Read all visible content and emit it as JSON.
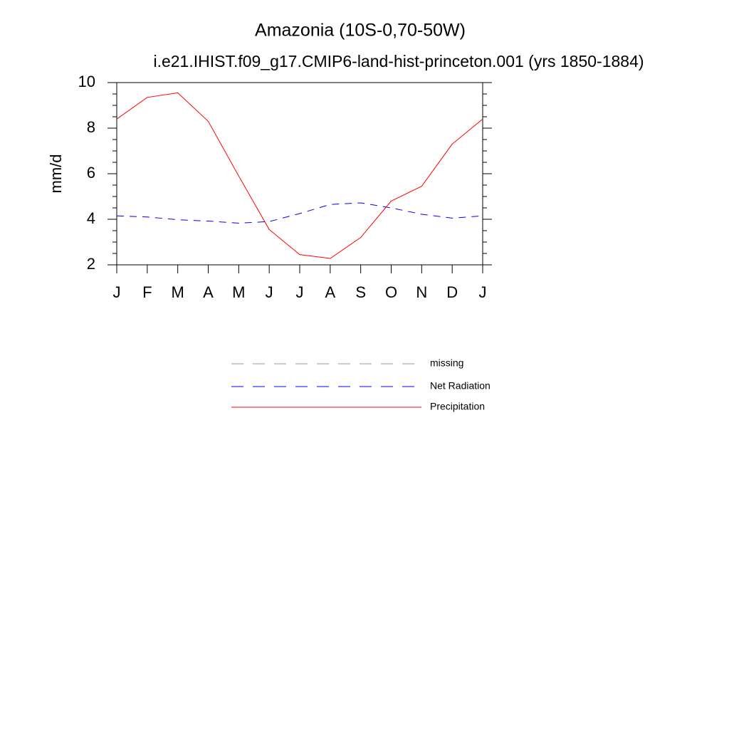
{
  "chart_data": {
    "type": "line",
    "title": "Amazonia (10S-0,70-50W)",
    "subtitle": "i.e21.IHIST.f09_g17.CMIP6-land-hist-princeton.001 (yrs 1850-1884)",
    "y_label": "mm/d",
    "categories": [
      "J",
      "F",
      "M",
      "A",
      "M",
      "J",
      "J",
      "A",
      "S",
      "O",
      "N",
      "D",
      "J"
    ],
    "ylim": [
      2,
      10
    ],
    "yticks": [
      2,
      4,
      6,
      8,
      10
    ],
    "series": [
      {
        "name": "missing",
        "color": "#999999",
        "line_style": "dashed",
        "values": [
          null,
          null,
          null,
          null,
          null,
          null,
          null,
          null,
          null,
          null,
          null,
          null,
          null
        ]
      },
      {
        "name": "Net Radiation",
        "color": "#0000ff",
        "line_style": "dashed",
        "values": [
          4.15,
          4.1,
          3.98,
          3.92,
          3.83,
          3.9,
          4.25,
          4.65,
          4.72,
          4.5,
          4.22,
          4.05,
          4.15
        ]
      },
      {
        "name": "Precipitation",
        "color": "#ff0000",
        "line_style": "solid",
        "values": [
          8.4,
          9.35,
          9.55,
          8.3,
          5.9,
          3.55,
          2.45,
          2.28,
          3.2,
          4.8,
          5.45,
          7.3,
          8.4
        ]
      }
    ]
  }
}
